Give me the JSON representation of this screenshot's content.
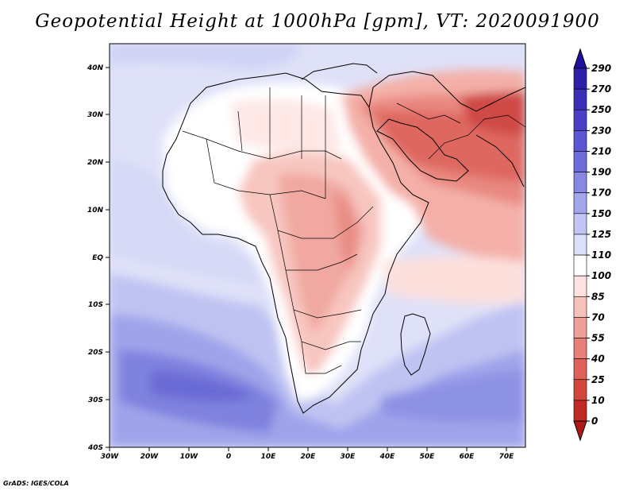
{
  "title": "Geopotential Height at 1000hPa [gpm], VT: 2020091900",
  "credit": "GrADS: IGES/COLA",
  "map": {
    "variable": "Geopotential Height",
    "level": "1000hPa",
    "units": "gpm",
    "valid_time": "2020091900",
    "lon_ticks": [
      "30W",
      "20W",
      "10W",
      "0",
      "10E",
      "20E",
      "30E",
      "40E",
      "50E",
      "60E",
      "70E"
    ],
    "lat_ticks": [
      "40N",
      "30N",
      "20N",
      "10N",
      "EQ",
      "10S",
      "20S",
      "30S",
      "40S"
    ]
  },
  "colorbar": {
    "labels": [
      "290",
      "270",
      "250",
      "230",
      "210",
      "190",
      "170",
      "150",
      "125",
      "110",
      "100",
      "85",
      "70",
      "55",
      "40",
      "25",
      "10",
      "0"
    ],
    "colors": [
      "#2e20a8",
      "#3a30b8",
      "#4a40c8",
      "#5c56d4",
      "#6e6cdc",
      "#8888e4",
      "#a4a6ec",
      "#c2c6f4",
      "#dde0fa",
      "#ffffff",
      "#fde2e0",
      "#f8c2bc",
      "#f0a098",
      "#e88078",
      "#de625a",
      "#d2463e",
      "#c02a24"
    ],
    "max_color": "#2010a0",
    "min_color": "#b01818"
  }
}
